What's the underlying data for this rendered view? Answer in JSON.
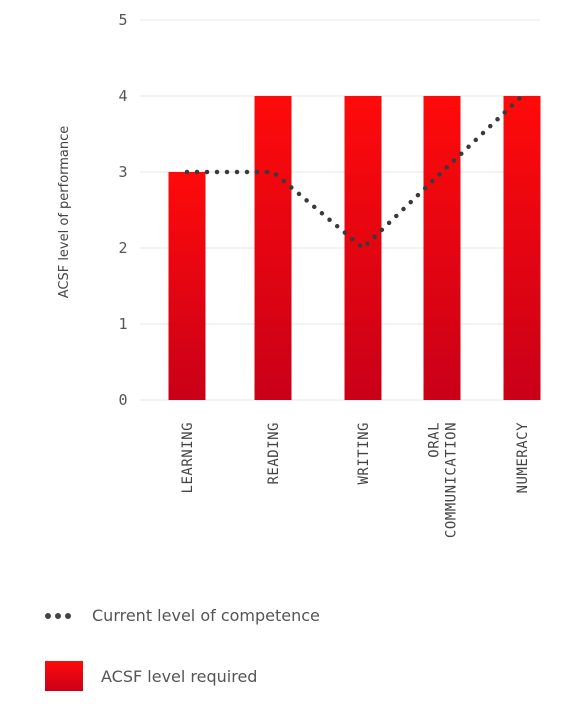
{
  "chart_data": {
    "type": "bar",
    "categories": [
      "LEARNING",
      "READING",
      "WRITING",
      "ORAL COMMUNICATION",
      "NUMERACY"
    ],
    "category_lines": [
      [
        "LEARNING"
      ],
      [
        "READING"
      ],
      [
        "WRITING"
      ],
      [
        "ORAL",
        "COMMUNICATION"
      ],
      [
        "NUMERACY"
      ]
    ],
    "series": [
      {
        "name": "ACSF level required",
        "type": "bar",
        "values": [
          3,
          4,
          4,
          4,
          4
        ]
      },
      {
        "name": "Current level of competence",
        "type": "line",
        "style": "dotted",
        "values": [
          3,
          3,
          2,
          3,
          4
        ]
      }
    ],
    "ylabel": "ACSF level of performance",
    "xlabel": "",
    "ylim": [
      0,
      5
    ],
    "yticks": [
      0,
      1,
      2,
      3,
      4,
      5
    ],
    "grid": true,
    "legend_placement": "bottom",
    "colors": {
      "bar_top": "#ff0a0a",
      "bar_bottom": "#c90018",
      "line": "#3a3a3a",
      "grid": "#e6e6e6"
    }
  },
  "legend": {
    "line_label": "Current level of competence",
    "bar_label": "ACSF level required"
  }
}
